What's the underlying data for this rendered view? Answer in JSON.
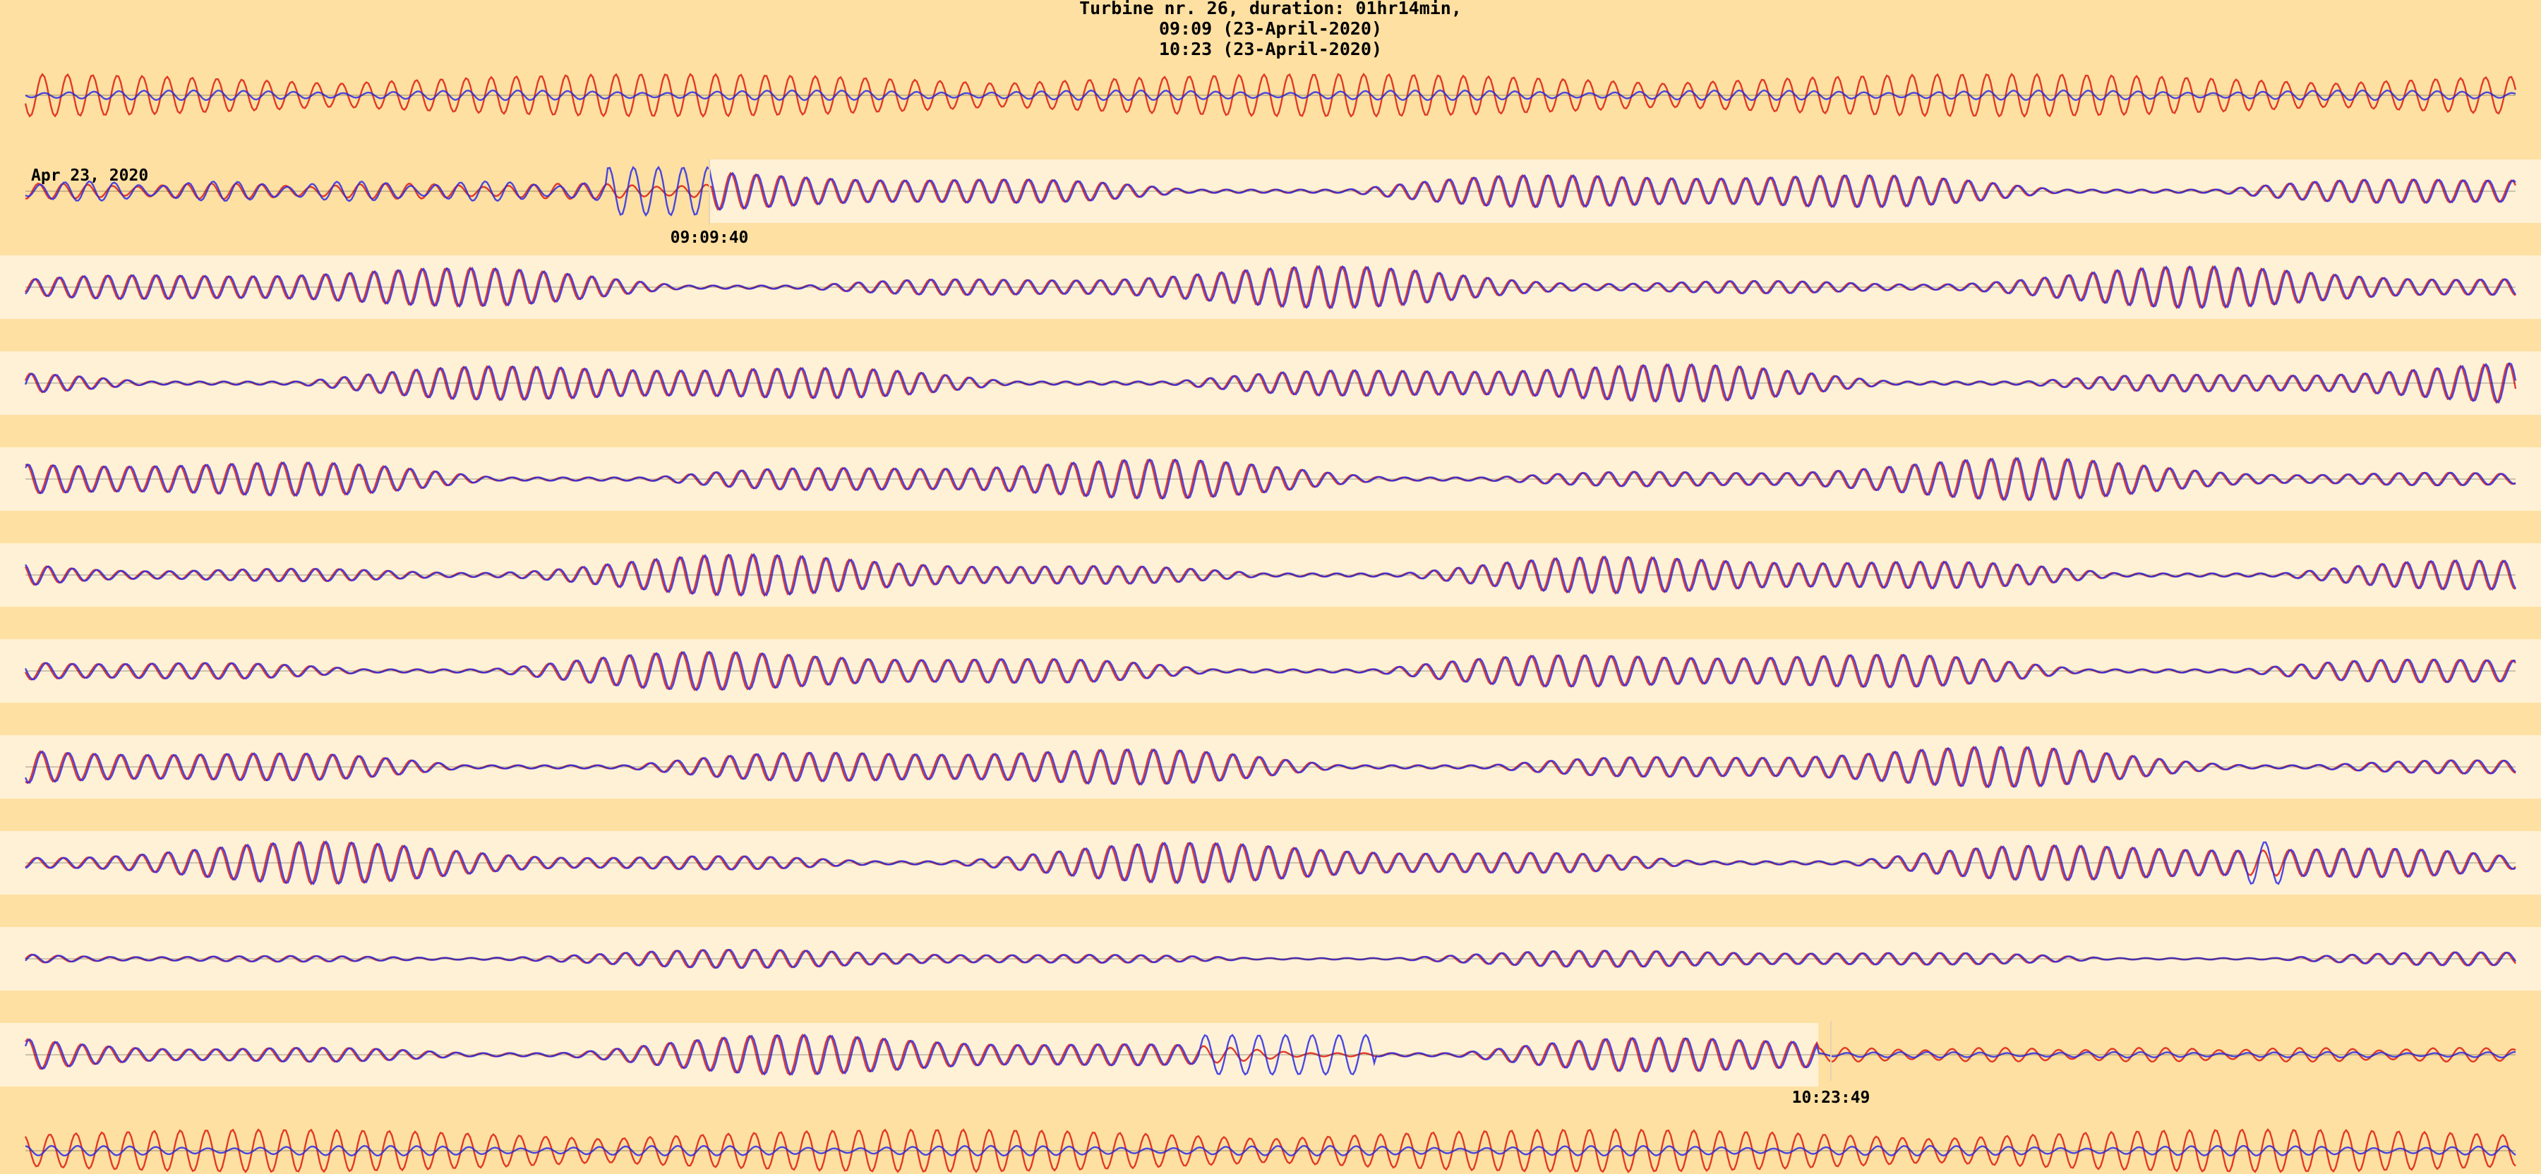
{
  "chart_data": {
    "type": "line",
    "title": [
      "Turbine nr. 26,  duration: 01hr14min,",
      "09:09 (23-April-2020)",
      "10:23 (23-April-2020)"
    ],
    "date_label": "Apr 23, 2020",
    "start_label": "09:09:40",
    "end_label": "10:23:49",
    "num_rows": 12,
    "start_fraction": 0.275,
    "end_fraction": 0.72,
    "grid": false,
    "legend": "none",
    "series": [
      {
        "color": "#e0301e"
      },
      {
        "color": "#2a2ae6"
      }
    ]
  },
  "colors": {
    "background": "#fde0a2",
    "band_light": "#fff1d6",
    "text": "#000000"
  }
}
